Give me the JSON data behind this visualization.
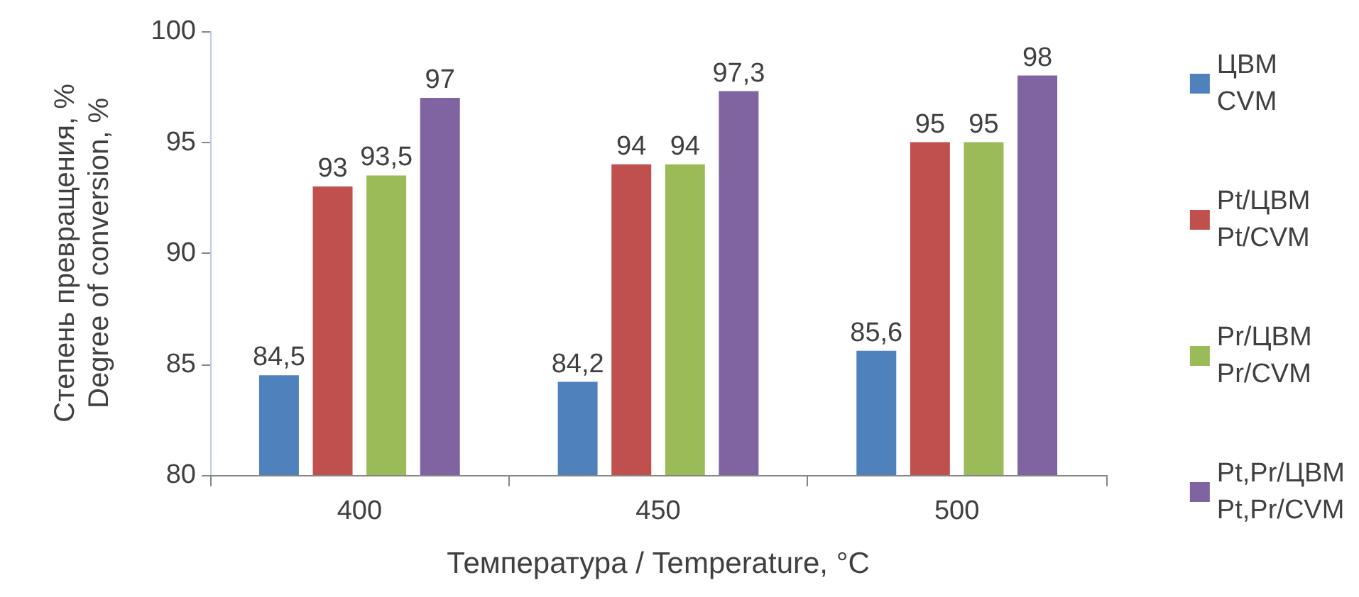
{
  "chart_data": {
    "type": "bar",
    "xlabel": "Температура / Temperature, °C",
    "ylabel": "Степень превращения, %\nDegree of conversion, %",
    "categories": [
      "400",
      "450",
      "500"
    ],
    "series": [
      {
        "name": "ЦВМ\nCVM",
        "color": "#4f81bd",
        "values": [
          84.5,
          84.2,
          85.6
        ],
        "value_labels": [
          "84,5",
          "84,2",
          "85,6"
        ]
      },
      {
        "name": "Pt/ЦВМ\nPt/CVM",
        "color": "#c0504d",
        "values": [
          93,
          94,
          95
        ],
        "value_labels": [
          "93",
          "94",
          "95"
        ]
      },
      {
        "name": "Pr/ЦВМ\nPr/CVM",
        "color": "#9bbb59",
        "values": [
          93.5,
          94,
          95
        ],
        "value_labels": [
          "93,5",
          "94",
          "95"
        ]
      },
      {
        "name": "Pt,Pr/ЦВМ\nPt,Pr/CVM",
        "color": "#8064a2",
        "values": [
          97,
          97.3,
          98
        ],
        "value_labels": [
          "97",
          "97,3",
          "98"
        ]
      }
    ],
    "ylim": [
      80,
      100
    ],
    "yticks": [
      80,
      85,
      90,
      95,
      100
    ],
    "grid": false,
    "legend": "right"
  }
}
